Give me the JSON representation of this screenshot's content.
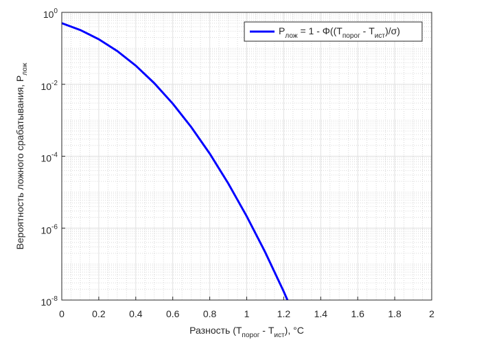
{
  "chart_data": {
    "type": "line",
    "xlabel": "Разность (T_{порог} - T_{ист}), °C",
    "ylabel": "Вероятность ложного срабатывания, P_{лож}",
    "x": [
      0,
      0.1,
      0.2,
      0.3,
      0.4,
      0.5,
      0.6,
      0.7,
      0.8,
      0.9,
      1.0,
      1.1,
      1.2,
      1.22
    ],
    "series": [
      {
        "name": "P_{лож} = 1 - Φ((T_{порог} - T_{ист})/σ)",
        "color": "#0000ff",
        "values": [
          0.5,
          0.323,
          0.179,
          0.0839,
          0.033,
          0.01075,
          0.0029,
          0.000645,
          0.000118,
          1.75e-05,
          2.13e-06,
          2.13e-07,
          1.72e-08,
          1e-08
        ]
      }
    ],
    "xlim": [
      0,
      2
    ],
    "xticks": [
      0,
      0.2,
      0.4,
      0.6,
      0.8,
      1,
      1.2,
      1.4,
      1.6,
      1.8,
      2
    ],
    "ylim": [
      1e-08,
      1
    ],
    "log_y": true,
    "yticks": [
      {
        "value": 1e-08,
        "label": "10^{-8}"
      },
      {
        "value": 1e-06,
        "label": "10^{-6}"
      },
      {
        "value": 0.0001,
        "label": "10^{-4}"
      },
      {
        "value": 0.01,
        "label": "10^{-2}"
      },
      {
        "value": 1,
        "label": "10^{0}"
      }
    ],
    "grid": true,
    "minor_grid": true,
    "legend": "upper right"
  }
}
